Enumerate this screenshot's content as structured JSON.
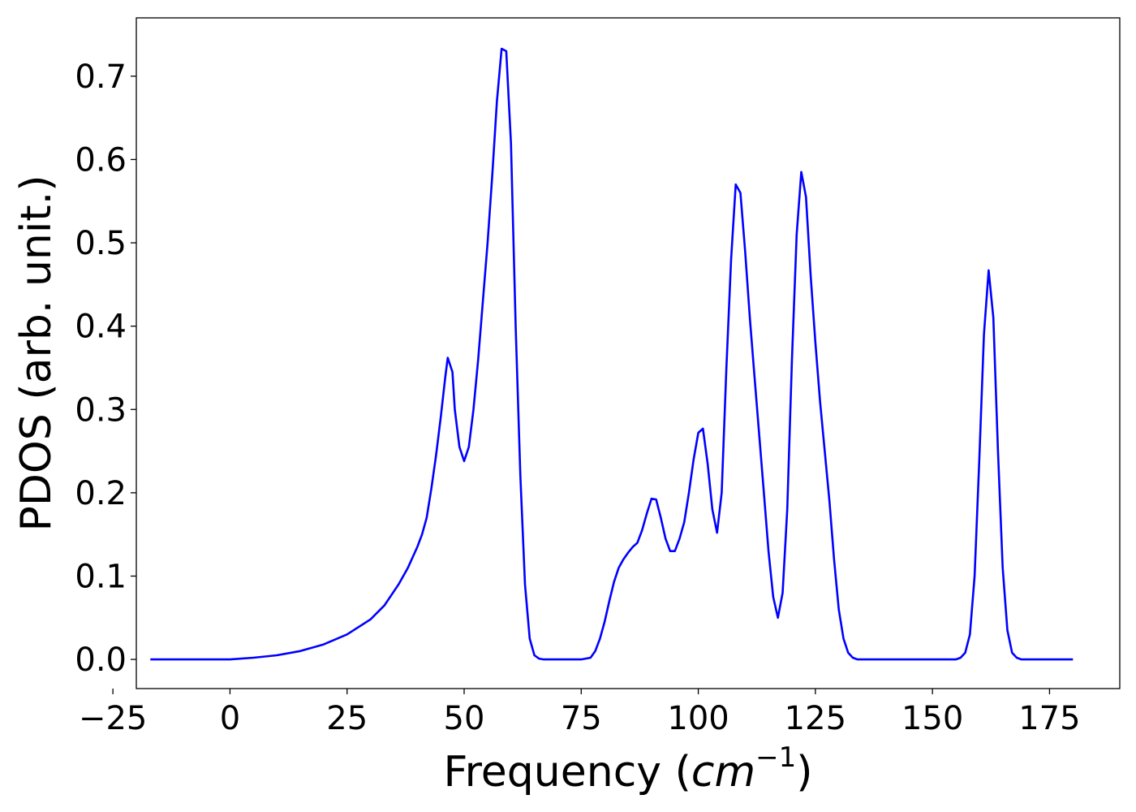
{
  "chart_data": {
    "type": "line",
    "xlabel": "Frequency (",
    "xlabel_math_base": "cm",
    "xlabel_math_exp": "−1",
    "xlabel_close": ")",
    "ylabel": "PDOS (arb. unit.)",
    "xlim": [
      -20,
      190
    ],
    "ylim": [
      -0.035,
      0.77
    ],
    "xticks": [
      -25,
      0,
      25,
      50,
      75,
      100,
      125,
      150,
      175
    ],
    "xtick_labels": [
      "−25",
      "0",
      "25",
      "50",
      "75",
      "100",
      "125",
      "150",
      "175"
    ],
    "yticks": [
      0.0,
      0.1,
      0.2,
      0.3,
      0.4,
      0.5,
      0.6,
      0.7
    ],
    "ytick_labels": [
      "0.0",
      "0.1",
      "0.2",
      "0.3",
      "0.4",
      "0.5",
      "0.6",
      "0.7"
    ],
    "grid": false,
    "line_color": "#0000ff",
    "series": [
      {
        "points": [
          [
            -17,
            0.0
          ],
          [
            0,
            0.0
          ],
          [
            5,
            0.002
          ],
          [
            10,
            0.005
          ],
          [
            15,
            0.01
          ],
          [
            20,
            0.018
          ],
          [
            25,
            0.03
          ],
          [
            30,
            0.048
          ],
          [
            33,
            0.065
          ],
          [
            36,
            0.09
          ],
          [
            38,
            0.11
          ],
          [
            40,
            0.135
          ],
          [
            41,
            0.15
          ],
          [
            42,
            0.17
          ],
          [
            43,
            0.205
          ],
          [
            44,
            0.245
          ],
          [
            45,
            0.29
          ],
          [
            46,
            0.34
          ],
          [
            46.5,
            0.362
          ],
          [
            47.5,
            0.345
          ],
          [
            48,
            0.3
          ],
          [
            49,
            0.255
          ],
          [
            50,
            0.238
          ],
          [
            51,
            0.255
          ],
          [
            52,
            0.3
          ],
          [
            53,
            0.36
          ],
          [
            54,
            0.43
          ],
          [
            55,
            0.5
          ],
          [
            56,
            0.58
          ],
          [
            57,
            0.67
          ],
          [
            58,
            0.733
          ],
          [
            59,
            0.73
          ],
          [
            60,
            0.62
          ],
          [
            61,
            0.4
          ],
          [
            62,
            0.22
          ],
          [
            63,
            0.09
          ],
          [
            64,
            0.025
          ],
          [
            65,
            0.005
          ],
          [
            66,
            0.001
          ],
          [
            67,
            0.0
          ],
          [
            75,
            0.0
          ],
          [
            77,
            0.002
          ],
          [
            78,
            0.01
          ],
          [
            79,
            0.025
          ],
          [
            80,
            0.045
          ],
          [
            81,
            0.07
          ],
          [
            82,
            0.093
          ],
          [
            83,
            0.11
          ],
          [
            84,
            0.12
          ],
          [
            85,
            0.128
          ],
          [
            86,
            0.135
          ],
          [
            87,
            0.14
          ],
          [
            88,
            0.155
          ],
          [
            89,
            0.175
          ],
          [
            90,
            0.193
          ],
          [
            91,
            0.192
          ],
          [
            92,
            0.17
          ],
          [
            93,
            0.145
          ],
          [
            94,
            0.13
          ],
          [
            95,
            0.13
          ],
          [
            96,
            0.145
          ],
          [
            97,
            0.165
          ],
          [
            98,
            0.2
          ],
          [
            99,
            0.24
          ],
          [
            100,
            0.272
          ],
          [
            101,
            0.277
          ],
          [
            102,
            0.235
          ],
          [
            103,
            0.18
          ],
          [
            104,
            0.152
          ],
          [
            105,
            0.2
          ],
          [
            106,
            0.35
          ],
          [
            107,
            0.48
          ],
          [
            108,
            0.57
          ],
          [
            109,
            0.56
          ],
          [
            110,
            0.49
          ],
          [
            111,
            0.41
          ],
          [
            112,
            0.34
          ],
          [
            113,
            0.27
          ],
          [
            114,
            0.2
          ],
          [
            115,
            0.13
          ],
          [
            116,
            0.075
          ],
          [
            117,
            0.05
          ],
          [
            118,
            0.08
          ],
          [
            119,
            0.18
          ],
          [
            120,
            0.36
          ],
          [
            121,
            0.51
          ],
          [
            122,
            0.585
          ],
          [
            123,
            0.555
          ],
          [
            124,
            0.46
          ],
          [
            125,
            0.38
          ],
          [
            126,
            0.31
          ],
          [
            127,
            0.25
          ],
          [
            128,
            0.19
          ],
          [
            129,
            0.12
          ],
          [
            130,
            0.06
          ],
          [
            131,
            0.025
          ],
          [
            132,
            0.008
          ],
          [
            133,
            0.002
          ],
          [
            134,
            0.0
          ],
          [
            155,
            0.0
          ],
          [
            156,
            0.002
          ],
          [
            157,
            0.008
          ],
          [
            158,
            0.03
          ],
          [
            159,
            0.1
          ],
          [
            160,
            0.24
          ],
          [
            161,
            0.39
          ],
          [
            162,
            0.467
          ],
          [
            163,
            0.41
          ],
          [
            164,
            0.25
          ],
          [
            165,
            0.11
          ],
          [
            166,
            0.035
          ],
          [
            167,
            0.008
          ],
          [
            168,
            0.002
          ],
          [
            169,
            0.0
          ],
          [
            180,
            0.0
          ]
        ]
      }
    ]
  }
}
